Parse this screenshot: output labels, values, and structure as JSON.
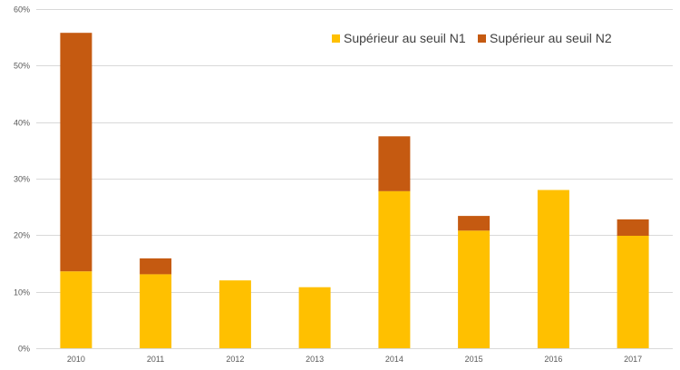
{
  "chart_data": {
    "type": "bar",
    "stacked": true,
    "categories": [
      "2010",
      "2011",
      "2012",
      "2013",
      "2014",
      "2015",
      "2016",
      "2017"
    ],
    "series": [
      {
        "name": "Supérieur au seuil N1",
        "color": "#FFC000",
        "values": [
          13.6,
          13.1,
          12.0,
          10.8,
          27.8,
          20.8,
          28.0,
          19.9
        ]
      },
      {
        "name": "Supérieur au seuil N2",
        "color": "#C55A11",
        "values": [
          42.2,
          2.8,
          0,
          0,
          9.7,
          2.6,
          0,
          2.9
        ]
      }
    ],
    "ylim": [
      0,
      60
    ],
    "yticks": [
      "0%",
      "10%",
      "20%",
      "30%",
      "40%",
      "50%",
      "60%"
    ],
    "ytick_values": [
      0,
      10,
      20,
      30,
      40,
      50,
      60
    ],
    "grid": true,
    "legend_position": "top-right",
    "gridline_color": "#D9D9D9"
  }
}
